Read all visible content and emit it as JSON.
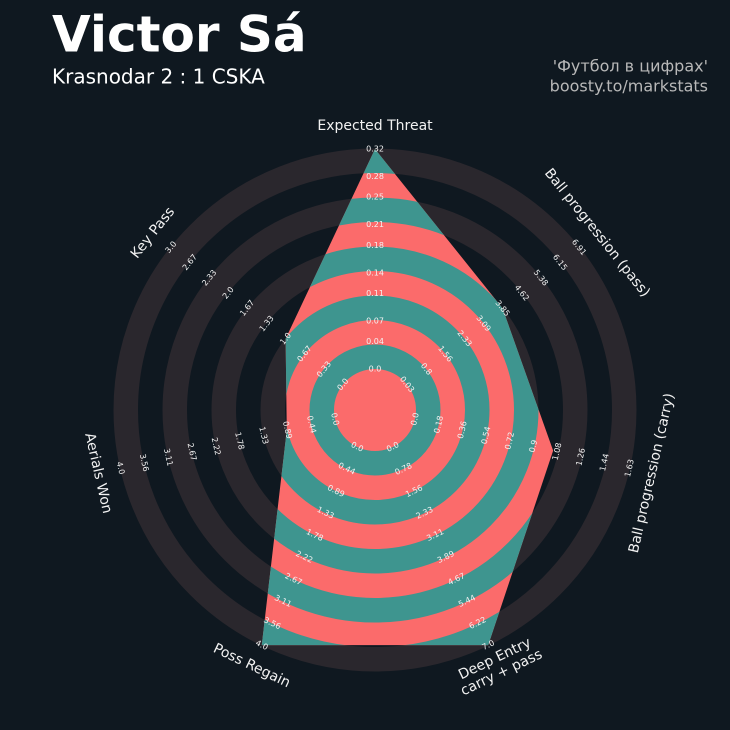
{
  "chart_data": {
    "type": "radar",
    "title": "Victor Sá",
    "subtitle": "Krasnodar 2 : 1 CSKA",
    "credits": [
      "'Футбол в цифрах'",
      "boosty.to/markstats"
    ],
    "categories": [
      "Expected Threat",
      "Ball progression (pass)",
      "Ball progression (carry)",
      "Deep Entry\ncarry + pass",
      "Poss Regain",
      "Aerials Won",
      "Key Pass"
    ],
    "lims": [
      [
        0,
        0.32
      ],
      [
        0.03,
        6.91
      ],
      [
        0,
        1.63
      ],
      [
        0,
        7
      ],
      [
        0,
        4
      ],
      [
        0,
        4
      ],
      [
        0,
        3
      ]
    ],
    "ticks": [
      [
        {
          "value": 0,
          "label": "0.0"
        },
        0.04,
        0.07,
        0.11,
        0.14,
        0.18,
        0.21,
        0.25,
        0.28,
        0.32
      ],
      [
        0.03,
        0.8,
        1.56,
        2.33,
        3.09,
        3.85,
        4.62,
        5.38,
        6.15,
        6.91
      ],
      [
        {
          "value": 0,
          "label": "0.0"
        },
        0.18,
        0.36,
        0.54,
        0.72,
        0.9,
        1.08,
        1.26,
        1.44,
        1.63
      ],
      [
        {
          "value": 0,
          "label": "0.0"
        },
        0.78,
        1.56,
        2.33,
        3.11,
        3.89,
        4.67,
        5.44,
        6.22,
        {
          "value": 7,
          "label": "7.0"
        }
      ],
      [
        {
          "value": 0,
          "label": "0.0"
        },
        0.44,
        0.89,
        1.33,
        1.78,
        2.22,
        2.67,
        3.11,
        3.56,
        {
          "value": 4,
          "label": "4.0"
        }
      ],
      [
        {
          "value": 0,
          "label": "0.0"
        },
        0.44,
        0.89,
        1.33,
        1.78,
        2.22,
        2.67,
        3.11,
        3.56,
        {
          "value": 4,
          "label": "4.0"
        }
      ],
      [
        {
          "value": 0,
          "label": "0.0"
        },
        0.33,
        0.67,
        {
          "value": 1,
          "label": "1.0"
        },
        1.33,
        1.67,
        {
          "value": 2,
          "label": "2.0"
        },
        2.33,
        2.67,
        {
          "value": 3,
          "label": "3.0"
        }
      ]
    ],
    "values": [
      0.32,
      3.85,
      1.05,
      7,
      4,
      0.9,
      1
    ],
    "colors": {
      "inside_a": "#fb6b6b",
      "inside_b": "#3e958f",
      "outside": "#2a272d"
    }
  }
}
